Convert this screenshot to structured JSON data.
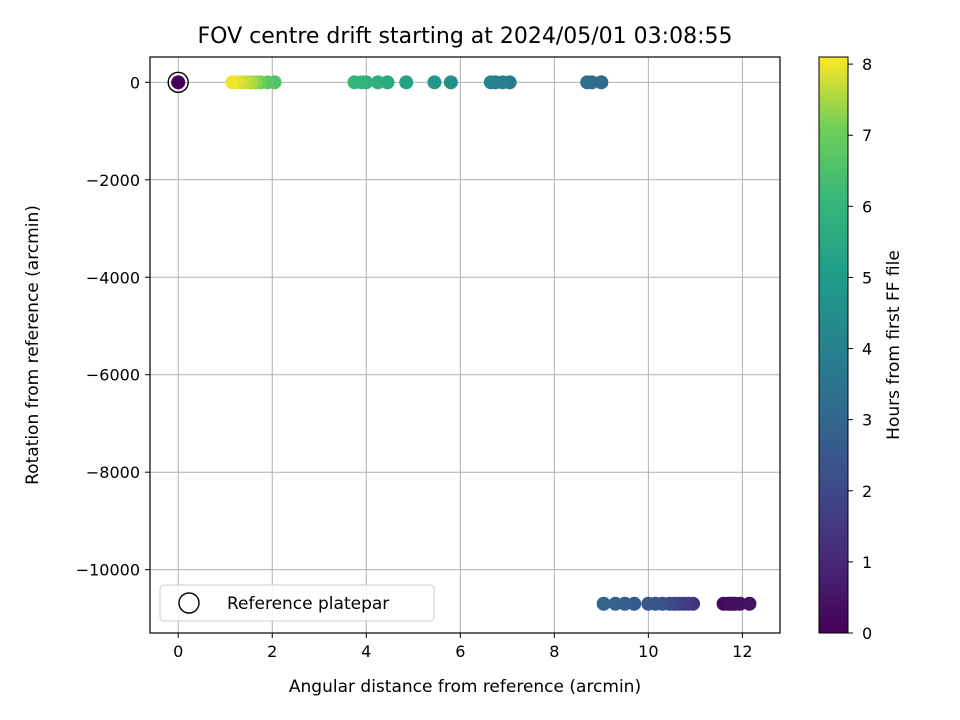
{
  "chart_data": {
    "type": "scatter",
    "title": "FOV centre drift starting at 2024/05/01 03:08:55",
    "xlabel": "Angular distance from reference (arcmin)",
    "ylabel": "Rotation from reference (arcmin)",
    "xlim": [
      -0.6,
      12.8
    ],
    "ylim": [
      -11300,
      520
    ],
    "xticks": [
      0,
      2,
      4,
      6,
      8,
      10,
      12
    ],
    "xtick_labels": [
      "0",
      "2",
      "4",
      "6",
      "8",
      "10",
      "12"
    ],
    "yticks": [
      0,
      -2000,
      -4000,
      -6000,
      -8000,
      -10000
    ],
    "ytick_labels": [
      "0",
      "−2000",
      "−4000",
      "−6000",
      "−8000",
      "−10000"
    ],
    "grid": true,
    "legend": {
      "position": "lower-left",
      "entries": [
        "Reference platepar"
      ]
    },
    "reference_point": {
      "x": 0,
      "y": 0,
      "hours": 0
    },
    "colorbar": {
      "label": "Hours from first FF file",
      "range": [
        0,
        8.1
      ],
      "ticks": [
        0,
        1,
        2,
        3,
        4,
        5,
        6,
        7,
        8
      ],
      "tick_labels": [
        "0",
        "1",
        "2",
        "3",
        "4",
        "5",
        "6",
        "7",
        "8"
      ],
      "colormap": "viridis"
    },
    "points": [
      {
        "x": 11.6,
        "y": -10700,
        "hours": 0.15
      },
      {
        "x": 11.7,
        "y": -10700,
        "hours": 0.2
      },
      {
        "x": 11.75,
        "y": -10700,
        "hours": 0.25
      },
      {
        "x": 11.8,
        "y": -10700,
        "hours": 0.3
      },
      {
        "x": 11.85,
        "y": -10700,
        "hours": 0.35
      },
      {
        "x": 11.95,
        "y": -10700,
        "hours": 0.4
      },
      {
        "x": 12.15,
        "y": -10700,
        "hours": 0.45
      },
      {
        "x": 10.95,
        "y": -10700,
        "hours": 1.3
      },
      {
        "x": 10.85,
        "y": -10700,
        "hours": 1.45
      },
      {
        "x": 10.75,
        "y": -10700,
        "hours": 1.55
      },
      {
        "x": 10.65,
        "y": -10700,
        "hours": 1.7
      },
      {
        "x": 10.55,
        "y": -10700,
        "hours": 1.85
      },
      {
        "x": 10.45,
        "y": -10700,
        "hours": 2.0
      },
      {
        "x": 10.3,
        "y": -10700,
        "hours": 2.15
      },
      {
        "x": 10.15,
        "y": -10700,
        "hours": 2.3
      },
      {
        "x": 10.0,
        "y": -10700,
        "hours": 2.45
      },
      {
        "x": 9.7,
        "y": -10700,
        "hours": 2.6
      },
      {
        "x": 9.5,
        "y": -10700,
        "hours": 2.75
      },
      {
        "x": 9.3,
        "y": -10700,
        "hours": 2.85
      },
      {
        "x": 9.05,
        "y": -10700,
        "hours": 2.95
      },
      {
        "x": 9.0,
        "y": 0,
        "hours": 3.05
      },
      {
        "x": 8.8,
        "y": 0,
        "hours": 3.15
      },
      {
        "x": 8.7,
        "y": 0,
        "hours": 3.25
      },
      {
        "x": 7.05,
        "y": 0,
        "hours": 3.75
      },
      {
        "x": 6.9,
        "y": 0,
        "hours": 3.85
      },
      {
        "x": 6.75,
        "y": 0,
        "hours": 3.95
      },
      {
        "x": 6.65,
        "y": 0,
        "hours": 4.05
      },
      {
        "x": 5.8,
        "y": 0,
        "hours": 4.6
      },
      {
        "x": 5.45,
        "y": 0,
        "hours": 4.8
      },
      {
        "x": 4.85,
        "y": 0,
        "hours": 5.3
      },
      {
        "x": 4.45,
        "y": 0,
        "hours": 5.55
      },
      {
        "x": 4.25,
        "y": 0,
        "hours": 5.7
      },
      {
        "x": 4.0,
        "y": 0,
        "hours": 5.85
      },
      {
        "x": 3.9,
        "y": 0,
        "hours": 5.95
      },
      {
        "x": 3.75,
        "y": 0,
        "hours": 6.05
      },
      {
        "x": 2.05,
        "y": 0,
        "hours": 6.6
      },
      {
        "x": 1.9,
        "y": 0,
        "hours": 6.75
      },
      {
        "x": 1.75,
        "y": 0,
        "hours": 7.0
      },
      {
        "x": 1.65,
        "y": 0,
        "hours": 7.3
      },
      {
        "x": 1.55,
        "y": 0,
        "hours": 7.5
      },
      {
        "x": 1.45,
        "y": 0,
        "hours": 7.65
      },
      {
        "x": 1.35,
        "y": 0,
        "hours": 7.75
      },
      {
        "x": 1.25,
        "y": 0,
        "hours": 7.9
      },
      {
        "x": 1.15,
        "y": 0,
        "hours": 8.0
      }
    ]
  }
}
